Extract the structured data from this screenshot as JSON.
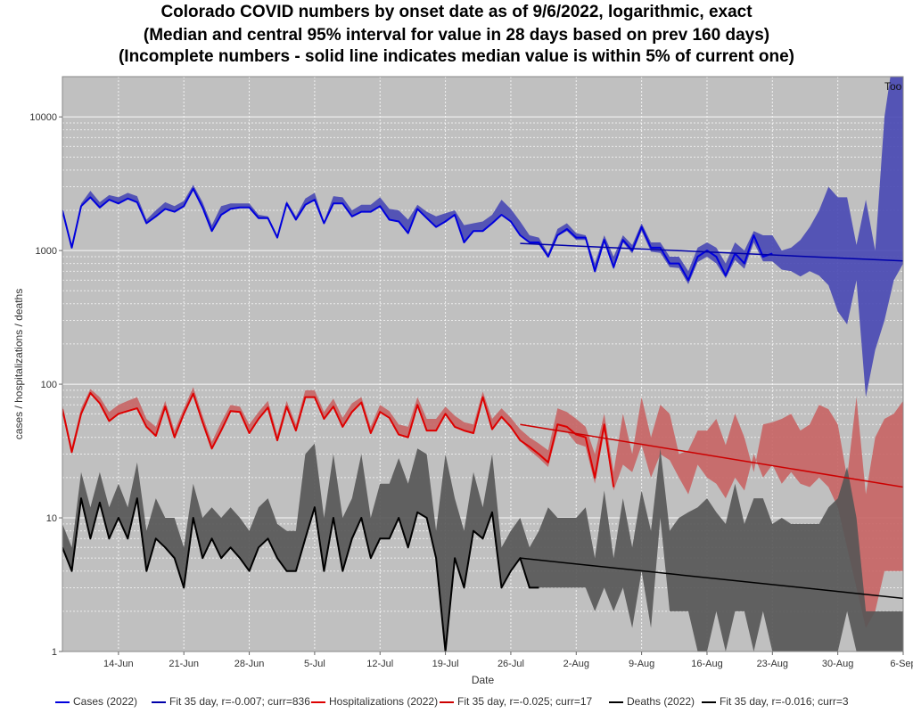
{
  "chart_data": {
    "type": "line",
    "title": [
      "Colorado COVID numbers by onset date as of 9/6/2022, logarithmic, exact",
      "(Median and central 95% interval for value in 28 days based on prev 160 days)",
      "(Incomplete numbers - solid line indicates median value is within 5% of current one)"
    ],
    "xlabel": "Date",
    "ylabel": "cases / hospitalizations / deaths",
    "yscale": "log",
    "ylim": [
      1,
      20000
    ],
    "y_ticks": [
      "1",
      "10",
      "100",
      "1000",
      "10000"
    ],
    "x_ticks": [
      "14-Jun",
      "21-Jun",
      "28-Jun",
      "5-Jul",
      "12-Jul",
      "19-Jul",
      "26-Jul",
      "2-Aug",
      "9-Aug",
      "16-Aug",
      "23-Aug",
      "30-Aug",
      "6-Sep"
    ],
    "x_start": "8-Jun",
    "day_count": 91,
    "corner_label": "Too",
    "colors": {
      "cases": "#0000dd",
      "cases_band": "#4848b4",
      "hosp": "#dd0000",
      "hosp_band": "#c86464",
      "deaths": "#000000",
      "deaths_band": "#555555",
      "plot_bg": "#c0c0c0"
    },
    "series": [
      {
        "name": "Cases (2022)",
        "key": "cases",
        "values": [
          2000,
          1050,
          2150,
          2500,
          2100,
          2400,
          2250,
          2450,
          2300,
          1600,
          1800,
          2050,
          1950,
          2150,
          2900,
          2100,
          1400,
          1850,
          2050,
          2100,
          2100,
          1750,
          1750,
          1250,
          2250,
          1700,
          2200,
          2400,
          1600,
          2250,
          2250,
          1800,
          1950,
          1950,
          2150,
          1700,
          1650,
          1350,
          2050,
          1750,
          1500,
          1650,
          1850,
          1150,
          1400,
          1400,
          1600,
          1850,
          1650,
          1300,
          1150,
          1150,
          900,
          1300,
          1450,
          1250,
          1250,
          700,
          1200,
          750,
          1200,
          1000,
          1500,
          1050,
          1050,
          800,
          800,
          600,
          900,
          1000,
          900,
          650,
          950,
          800,
          1300,
          900,
          950,
          null,
          null,
          null,
          null,
          null,
          null,
          null,
          null,
          null,
          null,
          null,
          null,
          null,
          null
        ],
        "band_low": [
          2000,
          1050,
          2150,
          2500,
          2100,
          2400,
          2250,
          2450,
          2300,
          1600,
          1800,
          2050,
          1950,
          2150,
          2900,
          2100,
          1400,
          1850,
          2050,
          2100,
          2100,
          1750,
          1750,
          1250,
          2250,
          1700,
          2200,
          2400,
          1600,
          2250,
          2250,
          1800,
          1950,
          1950,
          2150,
          1700,
          1650,
          1350,
          2050,
          1750,
          1500,
          1650,
          1850,
          1150,
          1400,
          1400,
          1600,
          1850,
          1650,
          1300,
          1150,
          1100,
          880,
          1280,
          1400,
          1200,
          1200,
          680,
          1150,
          720,
          1150,
          950,
          1400,
          980,
          960,
          750,
          740,
          560,
          820,
          900,
          800,
          620,
          850,
          730,
          1150,
          830,
          830,
          720,
          700,
          640,
          700,
          650,
          550,
          350,
          280,
          600,
          80,
          180,
          300,
          600,
          800
        ],
        "band_high": [
          2000,
          1050,
          2250,
          2800,
          2300,
          2600,
          2500,
          2700,
          2550,
          1700,
          2000,
          2300,
          2150,
          2350,
          3100,
          2300,
          1550,
          2150,
          2250,
          2250,
          2250,
          1850,
          1800,
          1300,
          2350,
          1800,
          2450,
          2700,
          1650,
          2550,
          2500,
          2000,
          2200,
          2200,
          2500,
          2050,
          2000,
          1700,
          2200,
          1950,
          1800,
          1900,
          2000,
          1550,
          1600,
          1650,
          1850,
          2400,
          2050,
          1650,
          1300,
          1250,
          950,
          1450,
          1600,
          1350,
          1300,
          800,
          1300,
          900,
          1300,
          1100,
          1600,
          1150,
          1150,
          900,
          900,
          700,
          1050,
          1150,
          1050,
          800,
          1150,
          1000,
          1400,
          1300,
          1300,
          1000,
          1050,
          1200,
          1500,
          2000,
          3000,
          2500,
          2500,
          1100,
          2400,
          1000,
          10000,
          30000,
          30000
        ]
      },
      {
        "name": "Fit 35 day, r=-0.007; curr=836",
        "key": "cases_fit",
        "x0": 49,
        "y0": 1130,
        "x1": 90,
        "y1": 836
      },
      {
        "name": "Hospitalizations (2022)",
        "key": "hosp",
        "values": [
          65,
          31,
          60,
          86,
          72,
          53,
          60,
          63,
          66,
          48,
          41,
          68,
          40,
          60,
          85,
          52,
          33,
          45,
          63,
          62,
          43,
          55,
          67,
          38,
          68,
          45,
          80,
          80,
          55,
          68,
          48,
          62,
          73,
          43,
          62,
          56,
          42,
          40,
          70,
          45,
          45,
          60,
          48,
          45,
          43,
          80,
          46,
          57,
          48,
          38,
          34,
          30,
          26,
          50,
          48,
          42,
          40,
          20,
          50,
          17,
          null,
          null,
          null,
          null,
          null,
          null,
          null,
          null,
          null,
          null,
          null,
          null,
          null,
          null,
          null,
          null,
          null,
          null,
          null,
          null,
          null,
          null,
          null,
          null,
          null,
          null,
          null,
          null,
          null,
          null,
          null
        ],
        "band_low": [
          65,
          31,
          60,
          86,
          72,
          53,
          60,
          63,
          66,
          48,
          41,
          68,
          40,
          60,
          85,
          52,
          33,
          45,
          63,
          62,
          43,
          55,
          67,
          38,
          68,
          45,
          80,
          80,
          55,
          68,
          48,
          62,
          73,
          43,
          62,
          56,
          42,
          40,
          70,
          45,
          45,
          60,
          48,
          45,
          43,
          80,
          46,
          57,
          48,
          38,
          32,
          28,
          24,
          45,
          44,
          36,
          34,
          18,
          44,
          16,
          25,
          22,
          35,
          20,
          30,
          27,
          20,
          15,
          25,
          20,
          18,
          14,
          20,
          16,
          30,
          20,
          25,
          18,
          22,
          18,
          17,
          20,
          17,
          12,
          6,
          3,
          1.5,
          2,
          4,
          4,
          4
        ],
        "band_high": [
          70,
          34,
          66,
          92,
          80,
          62,
          70,
          75,
          80,
          55,
          48,
          75,
          45,
          66,
          95,
          58,
          37,
          52,
          70,
          68,
          50,
          62,
          75,
          42,
          75,
          50,
          90,
          90,
          62,
          78,
          56,
          72,
          80,
          48,
          70,
          63,
          50,
          48,
          80,
          55,
          55,
          68,
          58,
          52,
          50,
          88,
          55,
          66,
          56,
          46,
          40,
          36,
          32,
          66,
          62,
          55,
          48,
          30,
          60,
          22,
          60,
          30,
          80,
          40,
          70,
          60,
          30,
          32,
          45,
          45,
          55,
          35,
          60,
          40,
          22,
          50,
          52,
          55,
          60,
          45,
          50,
          70,
          65,
          50,
          20,
          80,
          15,
          40,
          55,
          60,
          75
        ]
      },
      {
        "name": "Fit 35 day, r=-0.025; curr=17",
        "key": "hosp_fit",
        "x0": 49,
        "y0": 50,
        "x1": 90,
        "y1": 17
      },
      {
        "name": "Deaths (2022)",
        "key": "deaths",
        "values": [
          6,
          4,
          14,
          7,
          13,
          7,
          10,
          7,
          14,
          4,
          7,
          6,
          5,
          3,
          10,
          5,
          7,
          5,
          6,
          5,
          4,
          6,
          7,
          5,
          4,
          4,
          7,
          12,
          4,
          10,
          4,
          7,
          10,
          5,
          7,
          7,
          10,
          6,
          11,
          10,
          5,
          1,
          5,
          3,
          8,
          7,
          11,
          3,
          4,
          5,
          3,
          3,
          null,
          null,
          null,
          null,
          null,
          null,
          null,
          null,
          null,
          null,
          null,
          null,
          null,
          null,
          null,
          null,
          null,
          null,
          null,
          null,
          null,
          null,
          null,
          null,
          null,
          null,
          null,
          null,
          null,
          null,
          null,
          null,
          null,
          null,
          null,
          null,
          null,
          null,
          null
        ],
        "band_low": [
          6,
          4,
          14,
          7,
          13,
          7,
          10,
          7,
          14,
          4,
          7,
          6,
          5,
          3,
          10,
          5,
          7,
          5,
          6,
          5,
          4,
          6,
          7,
          5,
          4,
          4,
          7,
          12,
          4,
          10,
          4,
          7,
          10,
          5,
          7,
          7,
          10,
          6,
          11,
          10,
          5,
          1,
          5,
          3,
          8,
          7,
          11,
          3,
          4,
          5,
          3,
          3,
          3,
          3,
          3,
          3,
          3,
          2,
          3,
          2,
          3,
          1.5,
          4,
          1.5,
          10,
          2,
          2,
          2,
          1,
          1,
          2,
          1,
          2,
          2,
          1,
          2,
          1,
          1,
          1,
          1,
          1,
          1,
          1,
          1,
          2,
          1,
          1,
          1,
          1,
          1,
          1
        ],
        "band_high": [
          9,
          6,
          22,
          12,
          22,
          12,
          18,
          12,
          26,
          8,
          14,
          10,
          10,
          6,
          18,
          10,
          12,
          10,
          12,
          10,
          8,
          12,
          14,
          9,
          8,
          8,
          30,
          36,
          10,
          30,
          10,
          14,
          30,
          10,
          18,
          18,
          28,
          18,
          33,
          30,
          8,
          30,
          14,
          8,
          22,
          12,
          30,
          6,
          8,
          10,
          6,
          8,
          12,
          10,
          10,
          10,
          12,
          5,
          16,
          5,
          14,
          6,
          16,
          8,
          33,
          8,
          10,
          11,
          12,
          14,
          11,
          9,
          18,
          9,
          14,
          14,
          9,
          10,
          9,
          9,
          9,
          9,
          12,
          14,
          24,
          10,
          2,
          2,
          2,
          2,
          2
        ]
      },
      {
        "name": "Fit 35 day, r=-0.016; curr=3",
        "key": "deaths_fit",
        "x0": 49,
        "y0": 5,
        "x1": 90,
        "y1": 2.5
      }
    ],
    "legend": [
      {
        "label": "Cases (2022)",
        "color": "#0000dd"
      },
      {
        "label": "Fit 35 day, r=-0.007; curr=836",
        "color": "#0000aa"
      },
      {
        "label": "Hospitalizations (2022)",
        "color": "#dd0000"
      },
      {
        "label": "Fit 35 day, r=-0.025; curr=17",
        "color": "#cc0000"
      },
      {
        "label": "Deaths (2022)",
        "color": "#000000"
      },
      {
        "label": "Fit 35 day, r=-0.016; curr=3",
        "color": "#000000"
      }
    ]
  }
}
